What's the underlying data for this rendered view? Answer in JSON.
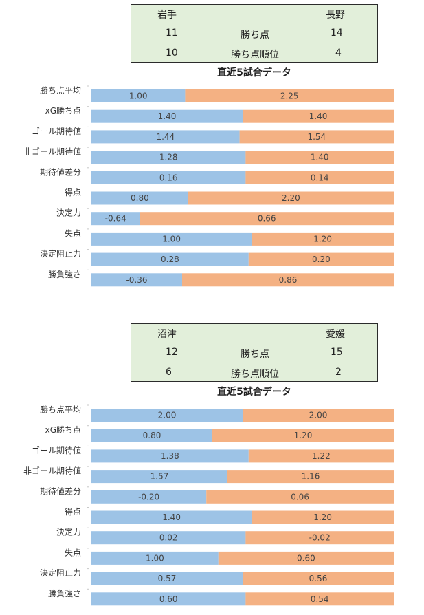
{
  "panels": [
    {
      "score": {
        "team_a": "岩手",
        "team_b": "長野",
        "points_label": "勝ち点",
        "rank_label": "勝ち点順位",
        "a_points": "11",
        "b_points": "14",
        "a_rank": "10",
        "b_rank": "4"
      },
      "chart_title": "直近5試合データ"
    },
    {
      "score": {
        "team_a": "沼津",
        "team_b": "愛媛",
        "points_label": "勝ち点",
        "rank_label": "勝ち点順位",
        "a_points": "12",
        "b_points": "15",
        "a_rank": "6",
        "b_rank": "2"
      },
      "chart_title": "直近5試合データ"
    }
  ],
  "colors": {
    "team_a_bar": "#9dc3e6",
    "team_b_bar": "#f4b183",
    "scorebox_bg": "#e2efda"
  },
  "chart_data": [
    {
      "type": "bar",
      "orientation": "horizontal-stacked-100",
      "title": "直近5試合データ",
      "categories": [
        "勝ち点平均",
        "xG勝ち点",
        "ゴール期待値",
        "非ゴール期待値",
        "期待値差分",
        "得点",
        "決定力",
        "失点",
        "決定阻止力",
        "勝負強さ"
      ],
      "series": [
        {
          "name": "岩手",
          "values": [
            "1.00",
            "1.40",
            "1.44",
            "1.28",
            "0.16",
            "0.80",
            "-0.64",
            "1.00",
            "0.28",
            "-0.36"
          ],
          "share": [
            0.31,
            0.5,
            0.49,
            0.51,
            0.51,
            0.32,
            0.16,
            0.53,
            0.52,
            0.3
          ]
        },
        {
          "name": "長野",
          "values": [
            "2.25",
            "1.40",
            "1.54",
            "1.40",
            "0.14",
            "2.20",
            "0.66",
            "1.20",
            "0.20",
            "0.86"
          ]
        }
      ]
    },
    {
      "type": "bar",
      "orientation": "horizontal-stacked-100",
      "title": "直近5試合データ",
      "categories": [
        "勝ち点平均",
        "xG勝ち点",
        "ゴール期待値",
        "非ゴール期待値",
        "期待値差分",
        "得点",
        "決定力",
        "失点",
        "決定阻止力",
        "勝負強さ"
      ],
      "series": [
        {
          "name": "沼津",
          "values": [
            "2.00",
            "0.80",
            "1.38",
            "1.57",
            "-0.20",
            "1.40",
            "0.02",
            "1.00",
            "0.57",
            "0.60"
          ],
          "share": [
            0.5,
            0.4,
            0.52,
            0.45,
            0.38,
            0.53,
            0.51,
            0.42,
            0.5,
            0.51
          ]
        },
        {
          "name": "愛媛",
          "values": [
            "2.00",
            "1.20",
            "1.22",
            "1.16",
            "0.06",
            "1.20",
            "-0.02",
            "0.60",
            "0.56",
            "0.54"
          ]
        }
      ]
    }
  ]
}
